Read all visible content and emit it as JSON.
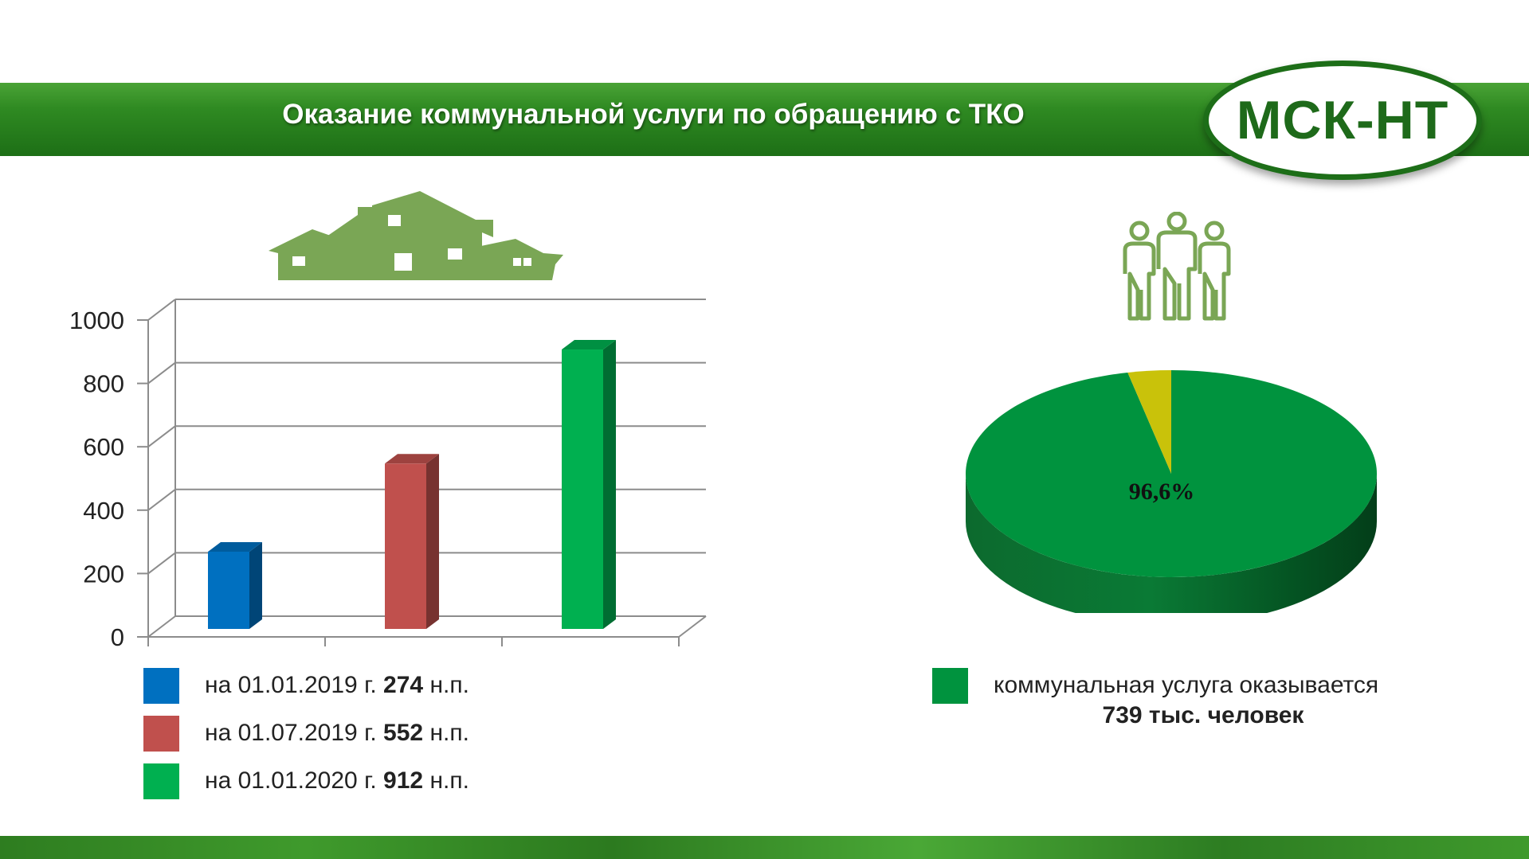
{
  "header": {
    "title": "Оказание коммунальной услуги по обращению с ТКО"
  },
  "logo": {
    "text": "МСК-НТ"
  },
  "icons": {
    "houses": "houses-icon",
    "people": "people-group-icon"
  },
  "colors": {
    "header_green": "#2f8a22",
    "icon_green": "#7aa655",
    "bar_2019_01": "#0070c0",
    "bar_2019_07": "#c0504d",
    "bar_2020_01": "#00b050",
    "pie_main": "#00933e",
    "pie_rest": "#c9c20a"
  },
  "chart_data": [
    {
      "type": "bar",
      "categories": [
        "на 01.01.2019 г.",
        "на 01.07.2019 г.",
        "на 01.01.2020 г."
      ],
      "values": [
        274,
        552,
        912
      ],
      "ylim": [
        0,
        1000
      ],
      "yticks": [
        "0",
        "200",
        "400",
        "600",
        "800",
        "1000"
      ],
      "grid": true,
      "legend": [
        {
          "prefix": "на 01.01.2019 г.",
          "value": "274",
          "unit": "н.п.",
          "color": "#0070c0"
        },
        {
          "prefix": "на 01.07.2019 г.",
          "value": "552",
          "unit": "н.п.",
          "color": "#c0504d"
        },
        {
          "prefix": "на 01.01.2020 г.",
          "value": "912",
          "unit": "н.п.",
          "color": "#00b050"
        }
      ]
    },
    {
      "type": "pie",
      "slices": [
        {
          "value": 96.6,
          "label": "96,6%",
          "color": "#00933e"
        },
        {
          "value": 3.4,
          "label": "",
          "color": "#c9c20a"
        }
      ],
      "legend": {
        "text": "коммунальная услуга оказывается",
        "detail": "739 тыс. человек",
        "color": "#00933e"
      }
    }
  ]
}
